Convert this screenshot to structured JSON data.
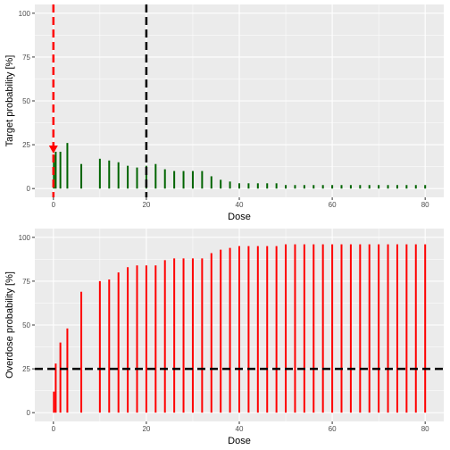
{
  "chart_data": [
    {
      "type": "bar",
      "xlabel": "Dose",
      "ylabel": "Target probability [%]",
      "xlim": [
        -4,
        84
      ],
      "ylim": [
        -5,
        105
      ],
      "x_ticks": [
        0,
        20,
        40,
        60,
        80
      ],
      "y_ticks": [
        0,
        25,
        50,
        75,
        100
      ],
      "grid": true,
      "bar_color": "#006400",
      "bars": [
        {
          "x": 0.1,
          "y": 19
        },
        {
          "x": 0.5,
          "y": 21
        },
        {
          "x": 1.5,
          "y": 21
        },
        {
          "x": 3,
          "y": 26
        },
        {
          "x": 6,
          "y": 14
        },
        {
          "x": 10,
          "y": 17
        },
        {
          "x": 12,
          "y": 16
        },
        {
          "x": 14,
          "y": 15
        },
        {
          "x": 16,
          "y": 13
        },
        {
          "x": 18,
          "y": 12
        },
        {
          "x": 20,
          "y": 13
        },
        {
          "x": 22,
          "y": 14
        },
        {
          "x": 24,
          "y": 11
        },
        {
          "x": 26,
          "y": 10
        },
        {
          "x": 28,
          "y": 10
        },
        {
          "x": 30,
          "y": 10
        },
        {
          "x": 32,
          "y": 10
        },
        {
          "x": 34,
          "y": 7
        },
        {
          "x": 36,
          "y": 5
        },
        {
          "x": 38,
          "y": 4
        },
        {
          "x": 40,
          "y": 3
        },
        {
          "x": 42,
          "y": 3
        },
        {
          "x": 44,
          "y": 3
        },
        {
          "x": 46,
          "y": 3
        },
        {
          "x": 48,
          "y": 3
        },
        {
          "x": 50,
          "y": 2
        },
        {
          "x": 52,
          "y": 2
        },
        {
          "x": 54,
          "y": 2
        },
        {
          "x": 56,
          "y": 2
        },
        {
          "x": 58,
          "y": 2
        },
        {
          "x": 60,
          "y": 2
        },
        {
          "x": 62,
          "y": 2
        },
        {
          "x": 64,
          "y": 2
        },
        {
          "x": 66,
          "y": 2
        },
        {
          "x": 68,
          "y": 2
        },
        {
          "x": 70,
          "y": 2
        },
        {
          "x": 72,
          "y": 2
        },
        {
          "x": 74,
          "y": 2
        },
        {
          "x": 76,
          "y": 2
        },
        {
          "x": 78,
          "y": 2
        },
        {
          "x": 80,
          "y": 2
        }
      ],
      "vlines": [
        {
          "x": 0,
          "color": "#ff0000",
          "style": "dashed"
        },
        {
          "x": 20,
          "color": "#000000",
          "style": "dashed"
        }
      ],
      "marker": {
        "x": 0,
        "y": 22,
        "color": "#ff0000",
        "shape": "triangle-down"
      }
    },
    {
      "type": "bar",
      "xlabel": "Dose",
      "ylabel": "Overdose probability [%]",
      "xlim": [
        -4,
        84
      ],
      "ylim": [
        -5,
        105
      ],
      "x_ticks": [
        0,
        20,
        40,
        60,
        80
      ],
      "y_ticks": [
        0,
        25,
        50,
        75,
        100
      ],
      "grid": true,
      "bar_color": "#ff0000",
      "bars": [
        {
          "x": 0.1,
          "y": 12
        },
        {
          "x": 0.5,
          "y": 28
        },
        {
          "x": 1.5,
          "y": 40
        },
        {
          "x": 3,
          "y": 48
        },
        {
          "x": 6,
          "y": 69
        },
        {
          "x": 10,
          "y": 75
        },
        {
          "x": 12,
          "y": 76
        },
        {
          "x": 14,
          "y": 80
        },
        {
          "x": 16,
          "y": 83
        },
        {
          "x": 18,
          "y": 84
        },
        {
          "x": 20,
          "y": 84
        },
        {
          "x": 22,
          "y": 84
        },
        {
          "x": 24,
          "y": 87
        },
        {
          "x": 26,
          "y": 88
        },
        {
          "x": 28,
          "y": 88
        },
        {
          "x": 30,
          "y": 88
        },
        {
          "x": 32,
          "y": 88
        },
        {
          "x": 34,
          "y": 91
        },
        {
          "x": 36,
          "y": 93
        },
        {
          "x": 38,
          "y": 94
        },
        {
          "x": 40,
          "y": 95
        },
        {
          "x": 42,
          "y": 95
        },
        {
          "x": 44,
          "y": 95
        },
        {
          "x": 46,
          "y": 95
        },
        {
          "x": 48,
          "y": 95
        },
        {
          "x": 50,
          "y": 96
        },
        {
          "x": 52,
          "y": 96
        },
        {
          "x": 54,
          "y": 96
        },
        {
          "x": 56,
          "y": 96
        },
        {
          "x": 58,
          "y": 96
        },
        {
          "x": 60,
          "y": 96
        },
        {
          "x": 62,
          "y": 96
        },
        {
          "x": 64,
          "y": 96
        },
        {
          "x": 66,
          "y": 96
        },
        {
          "x": 68,
          "y": 96
        },
        {
          "x": 70,
          "y": 96
        },
        {
          "x": 72,
          "y": 96
        },
        {
          "x": 74,
          "y": 96
        },
        {
          "x": 76,
          "y": 96
        },
        {
          "x": 78,
          "y": 96
        },
        {
          "x": 80,
          "y": 96
        }
      ],
      "hlines": [
        {
          "y": 25,
          "color": "#000000",
          "style": "dashed"
        }
      ]
    }
  ]
}
